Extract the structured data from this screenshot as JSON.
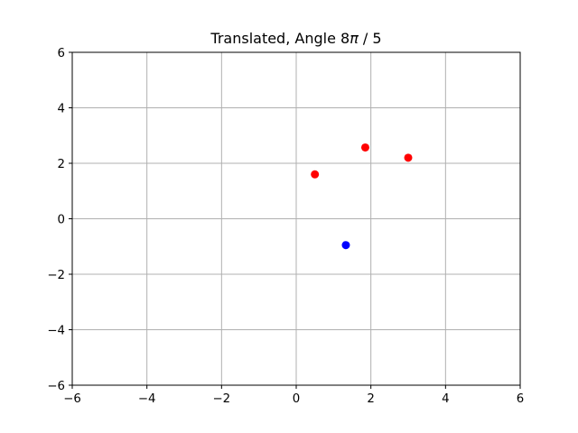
{
  "chart_data": {
    "type": "scatter",
    "title_prefix": "Translated, Angle 8",
    "title_symbol": "π",
    "title_suffix": " / 5",
    "xlabel": "",
    "ylabel": "",
    "xlim": [
      -6,
      6
    ],
    "ylim": [
      -6,
      6
    ],
    "xticks": [
      -6,
      -4,
      -2,
      0,
      2,
      4,
      6
    ],
    "yticks": [
      -6,
      -4,
      -2,
      0,
      2,
      4,
      6
    ],
    "grid": true,
    "series": [
      {
        "color": "#ff0000",
        "points": [
          {
            "x": 0.5,
            "y": 1.6
          },
          {
            "x": 1.85,
            "y": 2.57
          },
          {
            "x": 3.0,
            "y": 2.2
          }
        ]
      },
      {
        "color": "#0000ff",
        "points": [
          {
            "x": 1.33,
            "y": -0.95
          }
        ]
      }
    ]
  }
}
